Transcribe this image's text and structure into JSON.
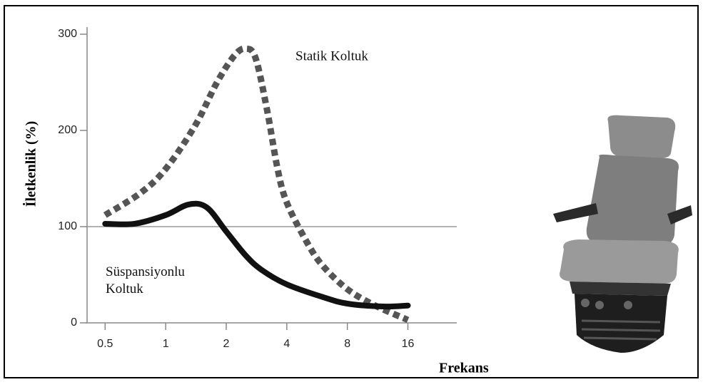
{
  "chart_data": {
    "type": "line",
    "y_label": "İletkenlik (%)",
    "x_label": "Frekans",
    "xlog": true,
    "xlim": [
      0.4,
      28
    ],
    "xticks": [
      0.5,
      1,
      2,
      4,
      8,
      16
    ],
    "ylim": [
      0,
      300
    ],
    "yticks": [
      0,
      100,
      200,
      300
    ],
    "hline": 100,
    "series": [
      {
        "name": "Statik Koltuk",
        "color": "#555555",
        "dashed": true,
        "x": [
          0.5,
          0.75,
          1,
          1.4,
          1.8,
          2.2,
          2.5,
          2.8,
          3.2,
          3.6,
          4,
          5,
          6,
          8,
          11,
          16
        ],
        "values": [
          112,
          135,
          160,
          205,
          250,
          278,
          285,
          275,
          220,
          160,
          125,
          85,
          60,
          35,
          18,
          3
        ]
      },
      {
        "name": "Süspansiyonlu Koltuk",
        "color": "#111111",
        "dashed": false,
        "x": [
          0.5,
          0.7,
          1,
          1.3,
          1.6,
          2,
          2.5,
          3,
          4,
          6,
          8,
          12,
          16
        ],
        "values": [
          103,
          103,
          112,
          123,
          120,
          95,
          70,
          55,
          40,
          27,
          20,
          17,
          18
        ]
      }
    ]
  }
}
